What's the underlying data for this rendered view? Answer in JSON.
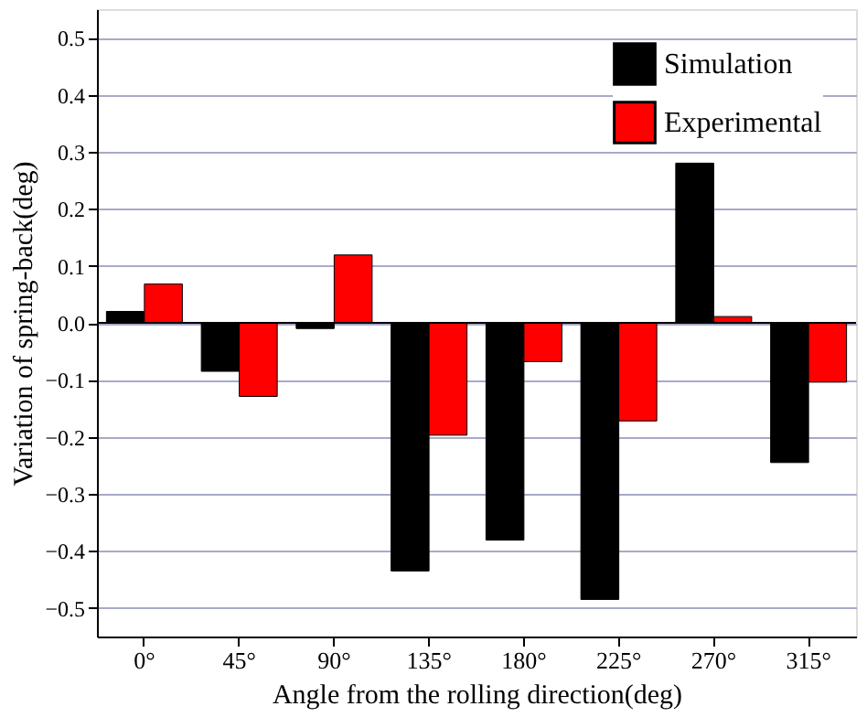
{
  "chart_data": {
    "type": "bar",
    "xlabel": "Angle from the rolling direction(deg)",
    "ylabel": "Variation of  spring-back(deg)",
    "categories": [
      "0°",
      "45°",
      "90°",
      "135°",
      "180°",
      "225°",
      "270°",
      "315°"
    ],
    "series": [
      {
        "name": "Simulation",
        "color": "#000000",
        "values": [
          0.02,
          -0.085,
          -0.01,
          -0.435,
          -0.381,
          -0.485,
          0.28,
          -0.245
        ]
      },
      {
        "name": "Experimental",
        "color": "#ff0000",
        "values": [
          0.068,
          -0.129,
          0.119,
          -0.197,
          -0.068,
          -0.172,
          0.011,
          -0.104
        ]
      }
    ],
    "ylim": [
      -0.55,
      0.55
    ],
    "yticks": [
      -0.5,
      -0.4,
      -0.3,
      -0.2,
      -0.1,
      {
        "value": 0,
        "label": "0.0"
      },
      0.1,
      0.2,
      0.3,
      0.4,
      0.5
    ],
    "grid": "y",
    "legend": "top right"
  }
}
